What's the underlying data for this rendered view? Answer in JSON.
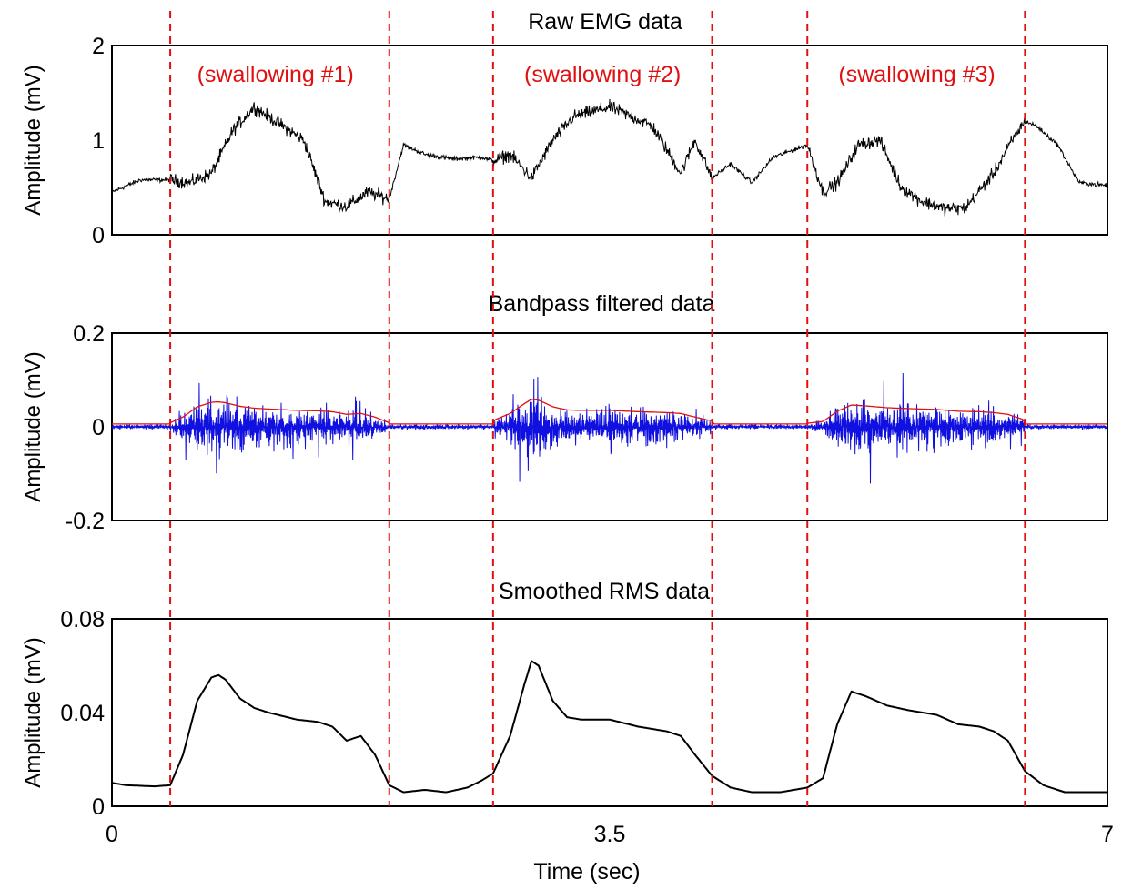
{
  "figure": {
    "xlabel": "Time (sec)",
    "xticks": [
      "0",
      "3.5",
      "7"
    ],
    "xlim": [
      0,
      7
    ],
    "event_color": "#e01010",
    "event_lines_sec": [
      0.41,
      1.95,
      2.68,
      4.22,
      4.89,
      6.42
    ],
    "segment_labels": [
      {
        "text": "(swallowing #1)",
        "x": 1.15
      },
      {
        "text": "(swallowing #2)",
        "x": 3.45
      },
      {
        "text": "(swallowing #3)",
        "x": 5.66
      }
    ]
  },
  "chart_data": [
    {
      "type": "line",
      "title": "Raw EMG data",
      "ylabel": "Amplitude (mV)",
      "ylim": [
        0,
        2
      ],
      "yticks": [
        "2",
        "1",
        "0"
      ],
      "ytick_values": [
        2,
        1,
        0
      ],
      "line_color": "#000000",
      "series": [
        {
          "x": [
            0,
            0.2,
            0.41,
            0.55,
            0.7,
            0.85,
            1.0,
            1.15,
            1.35,
            1.5,
            1.65,
            1.8,
            1.95,
            2.05,
            2.2,
            2.4,
            2.6,
            2.68,
            2.8,
            2.95,
            3.1,
            3.25,
            3.5,
            3.8,
            4.0,
            4.1,
            4.22,
            4.35,
            4.5,
            4.65,
            4.8,
            4.89,
            5.0,
            5.1,
            5.25,
            5.4,
            5.55,
            5.7,
            5.85,
            6.0,
            6.2,
            6.35,
            6.42,
            6.5,
            6.65,
            6.8,
            7.0
          ],
          "y": [
            0.45,
            0.58,
            0.58,
            0.55,
            0.65,
            1.1,
            1.35,
            1.2,
            1.0,
            0.35,
            0.3,
            0.45,
            0.38,
            0.95,
            0.85,
            0.8,
            0.82,
            0.78,
            0.85,
            0.6,
            1.0,
            1.25,
            1.35,
            1.15,
            0.65,
            1.0,
            0.6,
            0.75,
            0.55,
            0.82,
            0.9,
            0.95,
            0.45,
            0.55,
            0.95,
            1.0,
            0.5,
            0.35,
            0.28,
            0.28,
            0.65,
            1.05,
            1.2,
            1.15,
            0.95,
            0.55,
            0.52
          ]
        }
      ],
      "noise_amplitude": 0.1
    },
    {
      "type": "line",
      "title": "Bandpass filtered data",
      "ylabel": "Amplitude (mV)",
      "ylim": [
        -0.2,
        0.2
      ],
      "yticks": [
        "0.2",
        "0",
        "-0.2"
      ],
      "ytick_values": [
        0.2,
        0,
        -0.2
      ],
      "signal_color": "#1010e0",
      "envelope_color": "#e01010",
      "series": [
        {
          "kind": "oscillating signal",
          "baseline_amplitude": 0.008,
          "burst_peak": 0.17
        },
        {
          "kind": "envelope"
        }
      ]
    },
    {
      "type": "line",
      "title": "Smoothed RMS data",
      "ylabel": "Amplitude (mV)",
      "ylim": [
        0,
        0.08
      ],
      "yticks": [
        "0.08",
        "0.04",
        "0"
      ],
      "ytick_values": [
        0.08,
        0.04,
        0
      ],
      "line_color": "#000000",
      "series": [
        {
          "x": [
            0,
            0.1,
            0.3,
            0.41,
            0.5,
            0.6,
            0.7,
            0.75,
            0.8,
            0.9,
            1.0,
            1.1,
            1.3,
            1.45,
            1.55,
            1.65,
            1.75,
            1.85,
            1.95,
            2.05,
            2.2,
            2.35,
            2.5,
            2.6,
            2.68,
            2.8,
            2.9,
            2.95,
            3.0,
            3.1,
            3.2,
            3.3,
            3.5,
            3.7,
            3.9,
            4.0,
            4.1,
            4.22,
            4.35,
            4.5,
            4.7,
            4.89,
            5.0,
            5.1,
            5.2,
            5.3,
            5.45,
            5.6,
            5.8,
            5.95,
            6.1,
            6.2,
            6.3,
            6.42,
            6.55,
            6.7,
            7.0
          ],
          "y": [
            0.01,
            0.009,
            0.0085,
            0.009,
            0.022,
            0.045,
            0.055,
            0.056,
            0.054,
            0.046,
            0.042,
            0.04,
            0.037,
            0.036,
            0.034,
            0.028,
            0.03,
            0.022,
            0.009,
            0.006,
            0.007,
            0.006,
            0.008,
            0.011,
            0.014,
            0.03,
            0.052,
            0.062,
            0.06,
            0.045,
            0.038,
            0.037,
            0.037,
            0.034,
            0.032,
            0.03,
            0.022,
            0.013,
            0.008,
            0.006,
            0.006,
            0.008,
            0.012,
            0.035,
            0.049,
            0.047,
            0.043,
            0.041,
            0.039,
            0.035,
            0.034,
            0.032,
            0.028,
            0.015,
            0.009,
            0.006,
            0.006
          ]
        }
      ]
    }
  ]
}
